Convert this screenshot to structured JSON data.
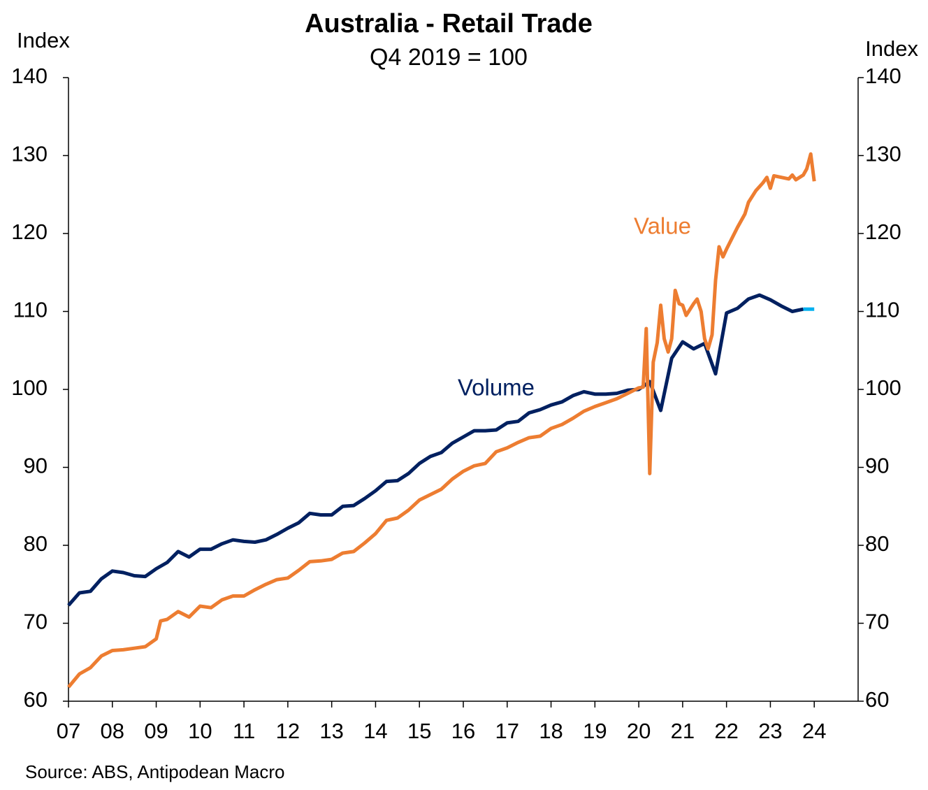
{
  "chart_data": {
    "type": "line",
    "title": "Australia - Retail Trade",
    "subtitle": "Q4 2019 = 100",
    "ylabel": "Index",
    "y2label": "Index",
    "source": "Source: ABS, Antipodean Macro",
    "xlim": [
      2007,
      2025
    ],
    "xticks": [
      {
        "value": 2007,
        "label": "07"
      },
      {
        "value": 2008,
        "label": "08"
      },
      {
        "value": 2009,
        "label": "09"
      },
      {
        "value": 2010,
        "label": "10"
      },
      {
        "value": 2011,
        "label": "11"
      },
      {
        "value": 2012,
        "label": "12"
      },
      {
        "value": 2013,
        "label": "13"
      },
      {
        "value": 2014,
        "label": "14"
      },
      {
        "value": 2015,
        "label": "15"
      },
      {
        "value": 2016,
        "label": "16"
      },
      {
        "value": 2017,
        "label": "17"
      },
      {
        "value": 2018,
        "label": "18"
      },
      {
        "value": 2019,
        "label": "19"
      },
      {
        "value": 2020,
        "label": "20"
      },
      {
        "value": 2021,
        "label": "21"
      },
      {
        "value": 2022,
        "label": "22"
      },
      {
        "value": 2023,
        "label": "23"
      },
      {
        "value": 2024,
        "label": "24"
      }
    ],
    "ylim": [
      60,
      140
    ],
    "yticks": [
      60,
      70,
      80,
      90,
      100,
      110,
      120,
      130,
      140
    ],
    "y2lim": [
      60,
      140
    ],
    "y2ticks": [
      60,
      70,
      80,
      90,
      100,
      110,
      120,
      130,
      140
    ],
    "grid": false,
    "series": [
      {
        "name": "Volume",
        "color": "#002060",
        "x": [
          2007.0,
          2007.25,
          2007.5,
          2007.75,
          2008.0,
          2008.25,
          2008.5,
          2008.75,
          2009.0,
          2009.25,
          2009.5,
          2009.75,
          2010.0,
          2010.25,
          2010.5,
          2010.75,
          2011.0,
          2011.25,
          2011.5,
          2011.75,
          2012.0,
          2012.25,
          2012.5,
          2012.75,
          2013.0,
          2013.25,
          2013.5,
          2013.75,
          2014.0,
          2014.25,
          2014.5,
          2014.75,
          2015.0,
          2015.25,
          2015.5,
          2015.75,
          2016.0,
          2016.25,
          2016.5,
          2016.75,
          2017.0,
          2017.25,
          2017.5,
          2017.75,
          2018.0,
          2018.25,
          2018.5,
          2018.75,
          2019.0,
          2019.25,
          2019.5,
          2019.75,
          2020.0,
          2020.25,
          2020.5,
          2020.75,
          2021.0,
          2021.25,
          2021.5,
          2021.75,
          2022.0,
          2022.25,
          2022.5,
          2022.75,
          2023.0,
          2023.25,
          2023.5,
          2023.75
        ],
        "values": [
          72.3,
          73.9,
          74.1,
          75.7,
          76.7,
          76.5,
          76.1,
          76.0,
          77.0,
          77.8,
          79.2,
          78.5,
          79.5,
          79.5,
          80.2,
          80.7,
          80.5,
          80.4,
          80.7,
          81.4,
          82.2,
          82.9,
          84.1,
          83.9,
          83.9,
          85.0,
          85.1,
          86.0,
          87.0,
          88.2,
          88.3,
          89.2,
          90.5,
          91.4,
          91.9,
          93.1,
          93.9,
          94.7,
          94.7,
          94.8,
          95.7,
          95.9,
          97.0,
          97.4,
          98.0,
          98.4,
          99.2,
          99.7,
          99.4,
          99.4,
          99.5,
          99.9,
          100.0,
          101.0,
          97.3,
          104.0,
          106.1,
          105.2,
          105.9,
          102.0,
          109.8,
          110.4,
          111.6,
          112.1,
          111.5,
          110.7,
          110.0,
          110.3
        ]
      },
      {
        "name": "Value",
        "color": "#ed7d31",
        "x": [
          2007.0,
          2007.25,
          2007.5,
          2007.75,
          2008.0,
          2008.25,
          2008.5,
          2008.75,
          2009.0,
          2009.1,
          2009.25,
          2009.5,
          2009.75,
          2010.0,
          2010.25,
          2010.5,
          2010.75,
          2011.0,
          2011.25,
          2011.5,
          2011.75,
          2012.0,
          2012.25,
          2012.5,
          2012.75,
          2013.0,
          2013.25,
          2013.5,
          2013.75,
          2014.0,
          2014.25,
          2014.5,
          2014.75,
          2015.0,
          2015.25,
          2015.5,
          2015.75,
          2016.0,
          2016.25,
          2016.5,
          2016.75,
          2017.0,
          2017.25,
          2017.5,
          2017.75,
          2018.0,
          2018.25,
          2018.5,
          2018.75,
          2019.0,
          2019.25,
          2019.5,
          2019.75,
          2020.0,
          2020.1,
          2020.17,
          2020.25,
          2020.33,
          2020.42,
          2020.5,
          2020.58,
          2020.67,
          2020.75,
          2020.83,
          2020.92,
          2021.0,
          2021.08,
          2021.25,
          2021.33,
          2021.42,
          2021.5,
          2021.58,
          2021.67,
          2021.75,
          2021.83,
          2021.92,
          2022.0,
          2022.25,
          2022.42,
          2022.5,
          2022.67,
          2022.83,
          2022.92,
          2023.0,
          2023.08,
          2023.25,
          2023.42,
          2023.5,
          2023.58,
          2023.75,
          2023.83,
          2023.92,
          2024.0
        ],
        "values": [
          61.8,
          63.5,
          64.3,
          65.8,
          66.5,
          66.6,
          66.8,
          67.0,
          68.0,
          70.3,
          70.5,
          71.5,
          70.8,
          72.2,
          72.0,
          73.0,
          73.5,
          73.5,
          74.3,
          75.0,
          75.6,
          75.8,
          76.8,
          77.9,
          78.0,
          78.2,
          79.0,
          79.2,
          80.3,
          81.5,
          83.2,
          83.5,
          84.5,
          85.8,
          86.5,
          87.2,
          88.5,
          89.5,
          90.2,
          90.5,
          92.0,
          92.5,
          93.2,
          93.8,
          94.0,
          95.0,
          95.5,
          96.3,
          97.2,
          97.8,
          98.3,
          98.8,
          99.5,
          100.2,
          100.3,
          107.8,
          89.2,
          103.5,
          106.0,
          110.8,
          106.5,
          104.8,
          106.5,
          112.7,
          111.0,
          110.8,
          109.5,
          111.0,
          111.6,
          110.0,
          106.5,
          105.2,
          107.0,
          114.0,
          118.3,
          117.0,
          118.0,
          120.8,
          122.5,
          124.0,
          125.5,
          126.5,
          127.2,
          125.8,
          127.4,
          127.2,
          127.0,
          127.5,
          126.9,
          127.5,
          128.3,
          130.2,
          126.7
        ]
      },
      {
        "color": "#00b0f0",
        "x": [
          2023.75,
          2024.0
        ],
        "values": [
          110.3,
          110.3
        ]
      }
    ]
  }
}
